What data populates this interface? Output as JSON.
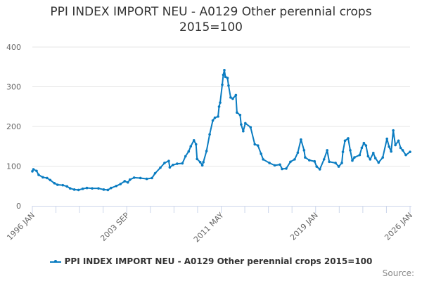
{
  "chart_data": {
    "type": "line",
    "title": "PPI INDEX IMPORT NEU - A0129 Other perennial crops 2015=100",
    "title_lines": [
      "PPI INDEX IMPORT NEU - A0129 Other perennial crops",
      "2015=100"
    ],
    "xlabel": "",
    "ylabel": "",
    "ylim": [
      0,
      400
    ],
    "yticks": [
      "0",
      "100",
      "200",
      "300",
      "400"
    ],
    "xlim": [
      "1996-01",
      "2026-01"
    ],
    "xtick_labels": [
      "1996 JAN",
      "2003 SEP",
      "2011 MAY",
      "2019 JAN",
      "2026 JAN"
    ],
    "grid": true,
    "legend_position": "bottom",
    "color": "#0a7cc1",
    "series": [
      {
        "name": "PPI INDEX IMPORT NEU - A0129 Other perennial crops 2015=100",
        "x": [
          "1996-01",
          "1996-02",
          "1996-05",
          "1996-07",
          "1996-11",
          "1997-03",
          "1997-06",
          "1997-10",
          "1998-01",
          "1998-06",
          "1998-10",
          "1999-01",
          "1999-05",
          "1999-09",
          "2000-01",
          "2000-05",
          "2000-10",
          "2001-04",
          "2001-09",
          "2002-01",
          "2002-04",
          "2002-09",
          "2003-01",
          "2003-05",
          "2003-08",
          "2003-10",
          "2004-02",
          "2004-08",
          "2005-02",
          "2005-07",
          "2005-10",
          "2006-03",
          "2006-07",
          "2006-11",
          "2006-12",
          "2007-03",
          "2007-07",
          "2007-12",
          "2008-03",
          "2008-06",
          "2008-08",
          "2008-11",
          "2009-01",
          "2009-02",
          "2009-05",
          "2009-07",
          "2009-08",
          "2009-11",
          "2010-02",
          "2010-05",
          "2010-07",
          "2010-10",
          "2010-11",
          "2010-12",
          "2011-02",
          "2011-03",
          "2011-04",
          "2011-05",
          "2011-07",
          "2011-08",
          "2011-10",
          "2011-12",
          "2012-03",
          "2012-04",
          "2012-07",
          "2012-08",
          "2012-10",
          "2012-12",
          "2013-05",
          "2013-09",
          "2013-12",
          "2014-03",
          "2014-05",
          "2014-11",
          "2015-04",
          "2015-09",
          "2015-11",
          "2016-03",
          "2016-07",
          "2016-11",
          "2017-02",
          "2017-05",
          "2017-08",
          "2017-09",
          "2018-01",
          "2018-06",
          "2018-08",
          "2018-11",
          "2019-03",
          "2019-06",
          "2019-08",
          "2020-02",
          "2020-05",
          "2020-08",
          "2020-09",
          "2020-11",
          "2021-02",
          "2021-04",
          "2021-06",
          "2021-08",
          "2022-01",
          "2022-03",
          "2022-05",
          "2022-07",
          "2022-09",
          "2022-11",
          "2023-02",
          "2023-04",
          "2023-07",
          "2023-11",
          "2024-03",
          "2024-05",
          "2024-07",
          "2024-09",
          "2024-11",
          "2025-02",
          "2025-04",
          "2025-06",
          "2025-09",
          "2026-01"
        ],
        "values": [
          87,
          92,
          88,
          78,
          72,
          70,
          65,
          57,
          53,
          52,
          49,
          44,
          41,
          40,
          43,
          45,
          44,
          44,
          41,
          40,
          45,
          50,
          55,
          62,
          59,
          66,
          71,
          70,
          68,
          70,
          82,
          96,
          108,
          113,
          97,
          103,
          106,
          107,
          125,
          137,
          150,
          165,
          155,
          118,
          110,
          102,
          110,
          138,
          180,
          215,
          222,
          225,
          250,
          260,
          305,
          330,
          342,
          325,
          322,
          303,
          273,
          270,
          279,
          235,
          229,
          205,
          188,
          208,
          198,
          155,
          152,
          131,
          117,
          108,
          102,
          104,
          93,
          94,
          111,
          117,
          134,
          167,
          140,
          122,
          115,
          112,
          99,
          92,
          117,
          140,
          111,
          108,
          99,
          108,
          136,
          164,
          170,
          140,
          114,
          122,
          128,
          146,
          158,
          152,
          125,
          117,
          133,
          120,
          109,
          122,
          169,
          149,
          137,
          190,
          153,
          164,
          146,
          140,
          128,
          136
        ]
      }
    ]
  },
  "source_label": "Source:"
}
